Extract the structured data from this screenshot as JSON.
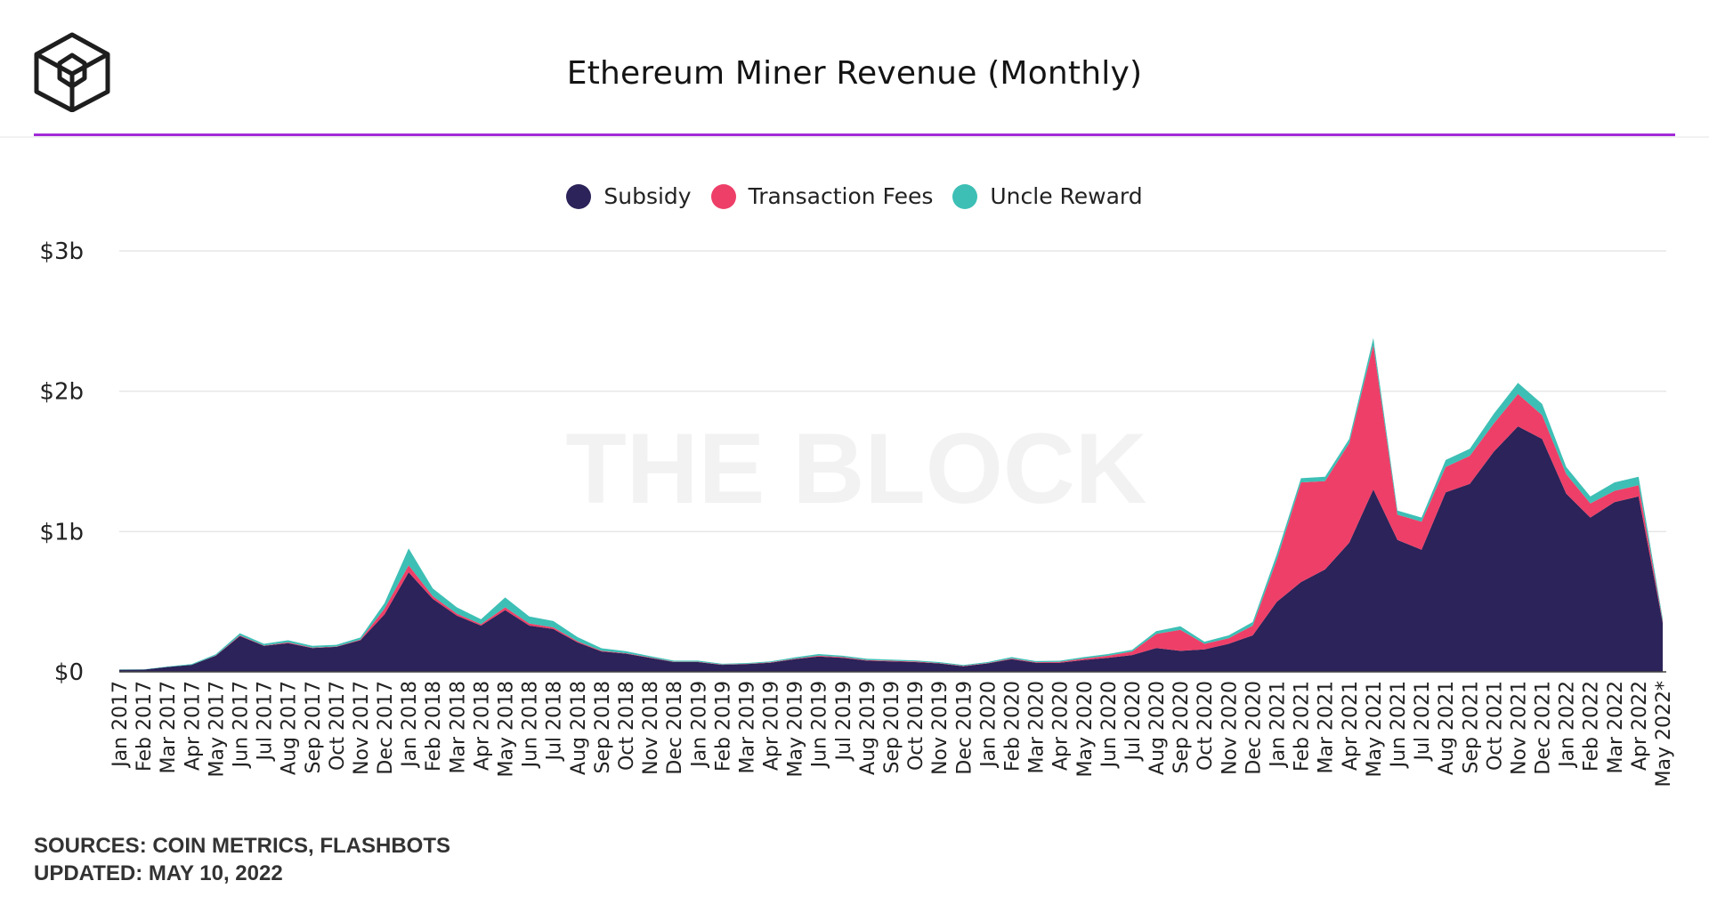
{
  "header": {
    "title": "Ethereum Miner Revenue (Monthly)",
    "logo": "the-block-cube-logo",
    "rule_color": "#a12bd6"
  },
  "watermark": "THE BLOCK",
  "legend": [
    {
      "label": "Subsidy",
      "color": "#2b2359"
    },
    {
      "label": "Transaction Fees",
      "color": "#ee3f68"
    },
    {
      "label": "Uncle Reward",
      "color": "#3dbfb5"
    }
  ],
  "footer": {
    "sources": "SOURCES: COIN METRICS, FLASHBOTS",
    "updated": "UPDATED: MAY 10, 2022"
  },
  "chart_data": {
    "type": "area",
    "stacked": true,
    "ylabel": "",
    "xlabel": "",
    "ylim": [
      0,
      3
    ],
    "y_ticks": [
      {
        "value": 0,
        "label": "$0"
      },
      {
        "value": 1,
        "label": "$1b"
      },
      {
        "value": 2,
        "label": "$2b"
      },
      {
        "value": 3,
        "label": "$3b"
      }
    ],
    "grid": true,
    "legend_position": "top-center",
    "categories": [
      "Jan 2017",
      "Feb 2017",
      "Mar 2017",
      "Apr 2017",
      "May 2017",
      "Jun 2017",
      "Jul 2017",
      "Aug 2017",
      "Sep 2017",
      "Oct 2017",
      "Nov 2017",
      "Dec 2017",
      "Jan 2018",
      "Feb 2018",
      "Mar 2018",
      "Apr 2018",
      "May 2018",
      "Jun 2018",
      "Jul 2018",
      "Aug 2018",
      "Sep 2018",
      "Oct 2018",
      "Nov 2018",
      "Dec 2018",
      "Jan 2019",
      "Feb 2019",
      "Mar 2019",
      "Apr 2019",
      "May 2019",
      "Jun 2019",
      "Jul 2019",
      "Aug 2019",
      "Sep 2019",
      "Oct 2019",
      "Nov 2019",
      "Dec 2019",
      "Jan 2020",
      "Feb 2020",
      "Mar 2020",
      "Apr 2020",
      "May 2020",
      "Jun 2020",
      "Jul 2020",
      "Aug 2020",
      "Sep 2020",
      "Oct 2020",
      "Nov 2020",
      "Dec 2020",
      "Jan 2021",
      "Feb 2021",
      "Mar 2021",
      "Apr 2021",
      "May 2021",
      "Jun 2021",
      "Jul 2021",
      "Aug 2021",
      "Sep 2021",
      "Oct 2021",
      "Nov 2021",
      "Dec 2021",
      "Jan 2022",
      "Feb 2022",
      "Mar 2022",
      "Apr 2022",
      "May 2022*"
    ],
    "series": [
      {
        "name": "Subsidy",
        "color": "#2b2359",
        "values": [
          0.015,
          0.016,
          0.035,
          0.05,
          0.115,
          0.255,
          0.185,
          0.205,
          0.17,
          0.178,
          0.225,
          0.41,
          0.71,
          0.52,
          0.4,
          0.33,
          0.44,
          0.33,
          0.305,
          0.21,
          0.145,
          0.13,
          0.1,
          0.07,
          0.07,
          0.05,
          0.055,
          0.065,
          0.09,
          0.11,
          0.1,
          0.08,
          0.075,
          0.07,
          0.06,
          0.04,
          0.06,
          0.09,
          0.065,
          0.065,
          0.085,
          0.1,
          0.12,
          0.17,
          0.15,
          0.16,
          0.2,
          0.26,
          0.5,
          0.64,
          0.73,
          0.92,
          1.3,
          0.94,
          0.87,
          1.28,
          1.34,
          1.57,
          1.75,
          1.66,
          1.27,
          1.1,
          1.21,
          1.25,
          0.35
        ]
      },
      {
        "name": "Transaction Fees",
        "color": "#ee3f68",
        "values": [
          0.0,
          0.0,
          0.0,
          0.0,
          0.002,
          0.005,
          0.003,
          0.005,
          0.003,
          0.003,
          0.005,
          0.04,
          0.05,
          0.02,
          0.015,
          0.01,
          0.02,
          0.015,
          0.012,
          0.008,
          0.005,
          0.003,
          0.003,
          0.002,
          0.002,
          0.002,
          0.002,
          0.003,
          0.004,
          0.005,
          0.005,
          0.004,
          0.004,
          0.004,
          0.003,
          0.003,
          0.003,
          0.005,
          0.004,
          0.006,
          0.01,
          0.015,
          0.025,
          0.1,
          0.15,
          0.04,
          0.04,
          0.07,
          0.3,
          0.71,
          0.63,
          0.71,
          1.03,
          0.18,
          0.2,
          0.18,
          0.2,
          0.2,
          0.23,
          0.17,
          0.14,
          0.1,
          0.08,
          0.08,
          0.01
        ]
      },
      {
        "name": "Uncle Reward",
        "color": "#3dbfb5",
        "values": [
          0.002,
          0.002,
          0.003,
          0.005,
          0.008,
          0.015,
          0.012,
          0.015,
          0.012,
          0.012,
          0.015,
          0.04,
          0.12,
          0.055,
          0.045,
          0.035,
          0.07,
          0.05,
          0.045,
          0.03,
          0.018,
          0.014,
          0.01,
          0.008,
          0.008,
          0.006,
          0.006,
          0.007,
          0.009,
          0.012,
          0.01,
          0.009,
          0.008,
          0.008,
          0.007,
          0.006,
          0.007,
          0.01,
          0.008,
          0.008,
          0.01,
          0.012,
          0.012,
          0.02,
          0.025,
          0.015,
          0.02,
          0.025,
          0.04,
          0.03,
          0.03,
          0.03,
          0.05,
          0.03,
          0.03,
          0.05,
          0.05,
          0.07,
          0.08,
          0.08,
          0.05,
          0.05,
          0.06,
          0.06,
          0.02
        ]
      }
    ]
  }
}
